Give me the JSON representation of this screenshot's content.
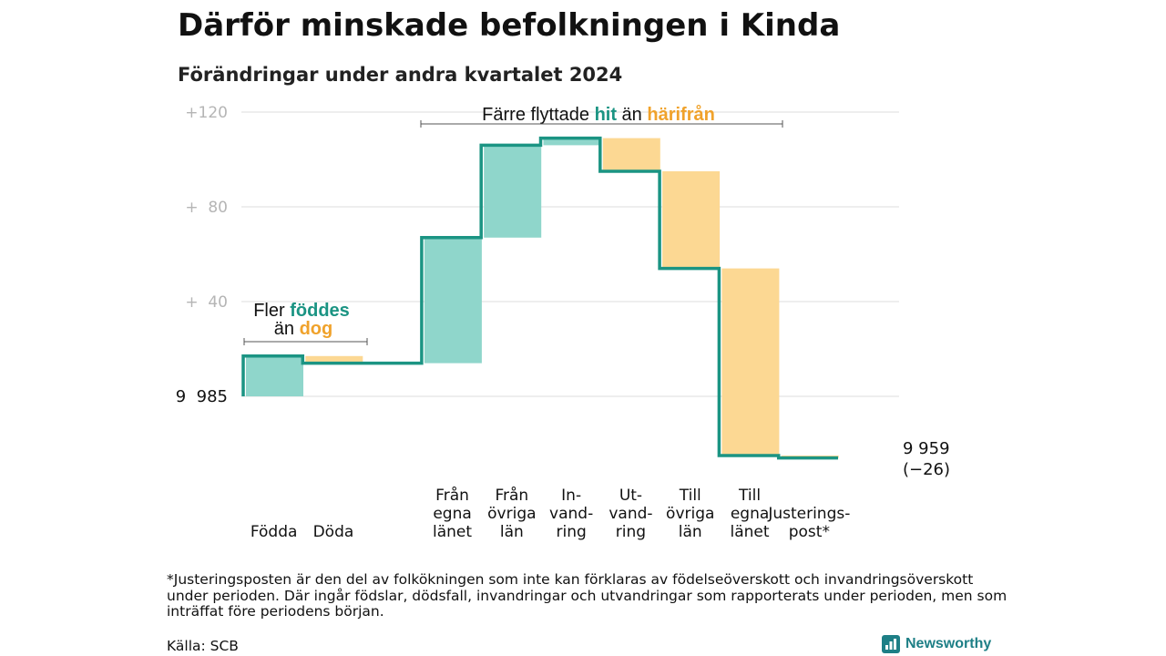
{
  "title": "Därför minskade befolkningen i Kinda",
  "subtitle": "Förändringar under andra kvartalet 2024",
  "colors": {
    "line": "#1b9483",
    "increase": "#8fd6cb",
    "decrease": "#fcd893",
    "accent_teal": "#1b9483",
    "accent_orange": "#f0a22b",
    "grid": "#dddddd",
    "brand": "#1e7f86"
  },
  "chart_data": {
    "type": "waterfall",
    "start_value": 9985,
    "end_value": 9959,
    "net_change": -26,
    "y_axis": {
      "min": -26,
      "max": 120,
      "ticks": [
        {
          "value": 120,
          "label": "+120"
        },
        {
          "value": 80,
          "label": "+  80"
        },
        {
          "value": 40,
          "label": "+  40"
        },
        {
          "value": 0,
          "label": "9  985"
        }
      ]
    },
    "steps": [
      {
        "label_lines": [
          "Födda"
        ],
        "change": 17
      },
      {
        "label_lines": [
          "Döda"
        ],
        "change": -3
      },
      {
        "label_lines": [],
        "change": 0
      },
      {
        "label_lines": [
          "Från",
          "egna",
          "länet"
        ],
        "change": 53
      },
      {
        "label_lines": [
          "Från",
          "övriga",
          "län"
        ],
        "change": 39
      },
      {
        "label_lines": [
          "In-",
          "vand-",
          "ring"
        ],
        "change": 3
      },
      {
        "label_lines": [
          "Ut-",
          "vand-",
          "ring"
        ],
        "change": -14
      },
      {
        "label_lines": [
          "Till",
          "övriga",
          "län"
        ],
        "change": -41
      },
      {
        "label_lines": [
          "Till",
          "egna",
          "länet"
        ],
        "change": -79
      },
      {
        "label_lines": [
          "Justerings-",
          "post*"
        ],
        "change": -1
      }
    ],
    "end_label_lines": [
      "9 959",
      "(−26)"
    ],
    "annotations": {
      "births": {
        "parts": [
          "Fler ",
          "föddes",
          "än ",
          "dog"
        ]
      },
      "migration": {
        "parts": [
          "Färre flyttade ",
          "hit",
          " än ",
          "härifrån"
        ]
      }
    }
  },
  "footnote": "*Justeringsposten är den del av folkökningen som inte kan förklaras av födelseöverskott och invandringsöverskott under perioden. Där ingår födslar, dödsfall, invandringar och utvandringar som rapporterats under perioden, men som inträffat före periodens början.",
  "source": "Källa: SCB",
  "brand": {
    "name": "Newsworthy",
    "icon": "bar-chart-logo-icon"
  }
}
